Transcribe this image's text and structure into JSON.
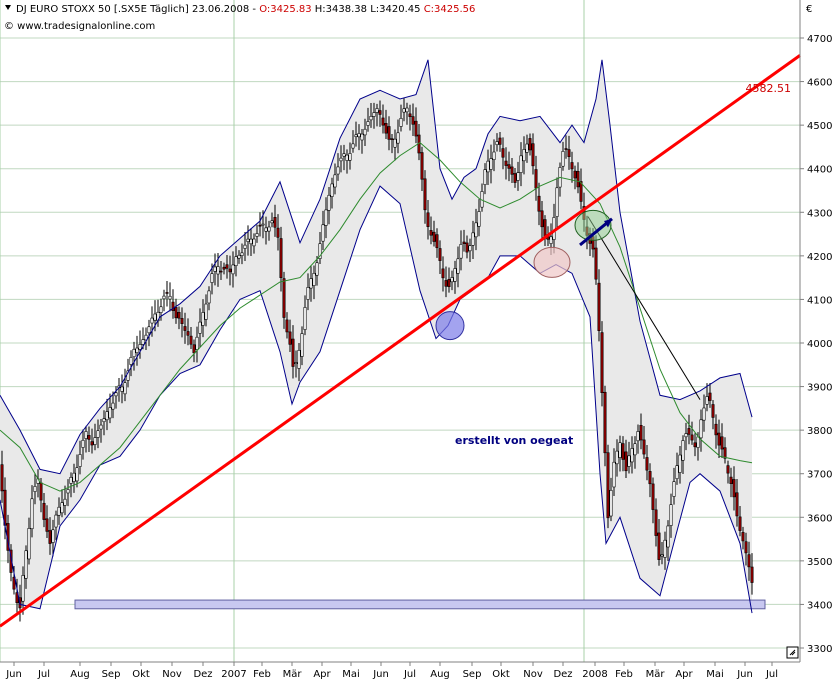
{
  "header": {
    "title": "DJ EURO STOXX 50 [.SX5E  Täglich] 23.06.2008 - ",
    "o": "O:3425.83",
    "h": " H:3438.38",
    "l": " L:3420.45",
    "c": " C:3425.56",
    "source": "© www.tradesignalonline.com",
    "currency": "€"
  },
  "annotation": "erstellt von oegeat",
  "trendline_label": "4582.51",
  "colors": {
    "trendline": "#ff0000",
    "bollinger": "#00008b",
    "ma": "#2e8b2e",
    "candle_up": "#ffffff",
    "candle_down": "#8b0000",
    "support_box": "#c8c8f0",
    "circle_blue": "#7c7ce8",
    "circle_pink": "#f0c8c8",
    "circle_green": "#90d090",
    "annotation": "#000080"
  },
  "chart_data": {
    "type": "candlestick",
    "series_name": "DJ EURO STOXX 50",
    "ylim": [
      3280,
      4760
    ],
    "yticks": [
      3300,
      3400,
      3500,
      3600,
      3700,
      3800,
      3900,
      4000,
      4100,
      4200,
      4300,
      4400,
      4500,
      4600,
      4700
    ],
    "xlabels": [
      "Jun",
      "Jul",
      "Aug",
      "Sep",
      "Okt",
      "Nov",
      "Dez",
      "2007",
      "Feb",
      "Mär",
      "Apr",
      "Mai",
      "Jun",
      "Jul",
      "Aug",
      "Sep",
      "Okt",
      "Nov",
      "Dez",
      "2008",
      "Feb",
      "Mär",
      "Apr",
      "Mai",
      "Jun",
      "Jul"
    ],
    "close_path": [
      [
        0,
        3720
      ],
      [
        4,
        3600
      ],
      [
        10,
        3480
      ],
      [
        16,
        3420
      ],
      [
        20,
        3390
      ],
      [
        26,
        3520
      ],
      [
        32,
        3650
      ],
      [
        38,
        3680
      ],
      [
        44,
        3600
      ],
      [
        50,
        3540
      ],
      [
        56,
        3600
      ],
      [
        62,
        3640
      ],
      [
        68,
        3660
      ],
      [
        74,
        3700
      ],
      [
        80,
        3750
      ],
      [
        86,
        3790
      ],
      [
        92,
        3770
      ],
      [
        98,
        3800
      ],
      [
        104,
        3820
      ],
      [
        110,
        3860
      ],
      [
        116,
        3880
      ],
      [
        122,
        3900
      ],
      [
        128,
        3940
      ],
      [
        134,
        3980
      ],
      [
        140,
        4000
      ],
      [
        146,
        4020
      ],
      [
        152,
        4050
      ],
      [
        158,
        4080
      ],
      [
        164,
        4100
      ],
      [
        170,
        4110
      ],
      [
        176,
        4060
      ],
      [
        182,
        4040
      ],
      [
        188,
        4020
      ],
      [
        194,
        3980
      ],
      [
        200,
        4040
      ],
      [
        206,
        4100
      ],
      [
        212,
        4150
      ],
      [
        218,
        4180
      ],
      [
        224,
        4170
      ],
      [
        230,
        4160
      ],
      [
        236,
        4200
      ],
      [
        242,
        4210
      ],
      [
        248,
        4230
      ],
      [
        254,
        4250
      ],
      [
        260,
        4260
      ],
      [
        266,
        4270
      ],
      [
        272,
        4280
      ],
      [
        278,
        4240
      ],
      [
        284,
        4060
      ],
      [
        290,
        4000
      ],
      [
        294,
        3920
      ],
      [
        300,
        4000
      ],
      [
        306,
        4100
      ],
      [
        312,
        4150
      ],
      [
        318,
        4200
      ],
      [
        324,
        4280
      ],
      [
        330,
        4350
      ],
      [
        336,
        4400
      ],
      [
        342,
        4420
      ],
      [
        348,
        4440
      ],
      [
        354,
        4460
      ],
      [
        360,
        4480
      ],
      [
        366,
        4500
      ],
      [
        372,
        4520
      ],
      [
        378,
        4540
      ],
      [
        384,
        4500
      ],
      [
        390,
        4450
      ],
      [
        396,
        4480
      ],
      [
        402,
        4520
      ],
      [
        408,
        4540
      ],
      [
        414,
        4500
      ],
      [
        420,
        4420
      ],
      [
        426,
        4280
      ],
      [
        432,
        4250
      ],
      [
        438,
        4200
      ],
      [
        444,
        4150
      ],
      [
        450,
        4120
      ],
      [
        456,
        4180
      ],
      [
        462,
        4240
      ],
      [
        468,
        4200
      ],
      [
        474,
        4260
      ],
      [
        480,
        4320
      ],
      [
        486,
        4400
      ],
      [
        492,
        4440
      ],
      [
        498,
        4460
      ],
      [
        504,
        4420
      ],
      [
        510,
        4400
      ],
      [
        516,
        4360
      ],
      [
        522,
        4440
      ],
      [
        528,
        4470
      ],
      [
        534,
        4380
      ],
      [
        540,
        4300
      ],
      [
        546,
        4220
      ],
      [
        552,
        4250
      ],
      [
        558,
        4380
      ],
      [
        564,
        4450
      ],
      [
        570,
        4420
      ],
      [
        576,
        4380
      ],
      [
        582,
        4300
      ],
      [
        588,
        4250
      ],
      [
        594,
        4200
      ],
      [
        598,
        4080
      ],
      [
        600,
        3980
      ],
      [
        604,
        3800
      ],
      [
        608,
        3600
      ],
      [
        614,
        3720
      ],
      [
        620,
        3780
      ],
      [
        626,
        3700
      ],
      [
        632,
        3760
      ],
      [
        638,
        3800
      ],
      [
        644,
        3740
      ],
      [
        650,
        3680
      ],
      [
        656,
        3560
      ],
      [
        660,
        3480
      ],
      [
        666,
        3560
      ],
      [
        672,
        3650
      ],
      [
        678,
        3720
      ],
      [
        684,
        3800
      ],
      [
        690,
        3780
      ],
      [
        696,
        3760
      ],
      [
        702,
        3840
      ],
      [
        708,
        3880
      ],
      [
        714,
        3820
      ],
      [
        720,
        3760
      ],
      [
        726,
        3720
      ],
      [
        732,
        3680
      ],
      [
        738,
        3580
      ],
      [
        744,
        3540
      ],
      [
        750,
        3480
      ],
      [
        754,
        3426
      ]
    ],
    "bollinger_upper": [
      [
        0,
        3880
      ],
      [
        20,
        3800
      ],
      [
        40,
        3710
      ],
      [
        60,
        3700
      ],
      [
        80,
        3790
      ],
      [
        100,
        3850
      ],
      [
        120,
        3900
      ],
      [
        140,
        3980
      ],
      [
        160,
        4060
      ],
      [
        180,
        4090
      ],
      [
        200,
        4130
      ],
      [
        220,
        4200
      ],
      [
        240,
        4240
      ],
      [
        260,
        4280
      ],
      [
        280,
        4370
      ],
      [
        290,
        4300
      ],
      [
        300,
        4230
      ],
      [
        320,
        4330
      ],
      [
        340,
        4470
      ],
      [
        360,
        4560
      ],
      [
        380,
        4580
      ],
      [
        400,
        4560
      ],
      [
        416,
        4570
      ],
      [
        428,
        4650
      ],
      [
        440,
        4400
      ],
      [
        452,
        4330
      ],
      [
        464,
        4380
      ],
      [
        476,
        4400
      ],
      [
        488,
        4480
      ],
      [
        500,
        4520
      ],
      [
        520,
        4510
      ],
      [
        540,
        4520
      ],
      [
        560,
        4460
      ],
      [
        572,
        4500
      ],
      [
        584,
        4460
      ],
      [
        596,
        4560
      ],
      [
        602,
        4650
      ],
      [
        610,
        4500
      ],
      [
        620,
        4300
      ],
      [
        640,
        4050
      ],
      [
        660,
        3880
      ],
      [
        680,
        3870
      ],
      [
        700,
        3890
      ],
      [
        720,
        3920
      ],
      [
        740,
        3930
      ],
      [
        752,
        3830
      ]
    ],
    "bollinger_lower": [
      [
        0,
        3640
      ],
      [
        20,
        3400
      ],
      [
        40,
        3390
      ],
      [
        60,
        3580
      ],
      [
        80,
        3640
      ],
      [
        100,
        3720
      ],
      [
        120,
        3740
      ],
      [
        140,
        3800
      ],
      [
        160,
        3880
      ],
      [
        180,
        3930
      ],
      [
        200,
        3950
      ],
      [
        220,
        4030
      ],
      [
        240,
        4100
      ],
      [
        260,
        4120
      ],
      [
        280,
        3980
      ],
      [
        292,
        3860
      ],
      [
        300,
        3910
      ],
      [
        320,
        3980
      ],
      [
        340,
        4120
      ],
      [
        360,
        4260
      ],
      [
        380,
        4360
      ],
      [
        400,
        4320
      ],
      [
        420,
        4120
      ],
      [
        436,
        4010
      ],
      [
        448,
        4040
      ],
      [
        460,
        4100
      ],
      [
        472,
        4120
      ],
      [
        488,
        4150
      ],
      [
        500,
        4200
      ],
      [
        520,
        4200
      ],
      [
        540,
        4160
      ],
      [
        556,
        4180
      ],
      [
        572,
        4160
      ],
      [
        590,
        4060
      ],
      [
        600,
        3700
      ],
      [
        606,
        3540
      ],
      [
        620,
        3600
      ],
      [
        640,
        3460
      ],
      [
        660,
        3420
      ],
      [
        676,
        3560
      ],
      [
        690,
        3680
      ],
      [
        700,
        3700
      ],
      [
        720,
        3660
      ],
      [
        740,
        3540
      ],
      [
        752,
        3380
      ]
    ],
    "moving_avg": [
      [
        0,
        3800
      ],
      [
        20,
        3760
      ],
      [
        40,
        3680
      ],
      [
        60,
        3660
      ],
      [
        80,
        3680
      ],
      [
        100,
        3720
      ],
      [
        120,
        3760
      ],
      [
        140,
        3820
      ],
      [
        160,
        3880
      ],
      [
        180,
        3940
      ],
      [
        200,
        3990
      ],
      [
        220,
        4040
      ],
      [
        240,
        4080
      ],
      [
        260,
        4110
      ],
      [
        280,
        4140
      ],
      [
        300,
        4150
      ],
      [
        320,
        4200
      ],
      [
        340,
        4260
      ],
      [
        360,
        4330
      ],
      [
        380,
        4390
      ],
      [
        400,
        4430
      ],
      [
        420,
        4460
      ],
      [
        440,
        4420
      ],
      [
        460,
        4370
      ],
      [
        480,
        4330
      ],
      [
        500,
        4310
      ],
      [
        520,
        4330
      ],
      [
        540,
        4360
      ],
      [
        560,
        4380
      ],
      [
        580,
        4370
      ],
      [
        600,
        4320
      ],
      [
        620,
        4220
      ],
      [
        640,
        4080
      ],
      [
        660,
        3940
      ],
      [
        680,
        3840
      ],
      [
        700,
        3780
      ],
      [
        720,
        3740
      ],
      [
        740,
        3730
      ],
      [
        752,
        3725
      ]
    ],
    "trendline": [
      [
        0,
        3350
      ],
      [
        800,
        4660
      ]
    ],
    "secondary_line": [
      [
        588,
        4290
      ],
      [
        700,
        3870
      ]
    ],
    "support_zone": [
      3390,
      3410
    ]
  }
}
